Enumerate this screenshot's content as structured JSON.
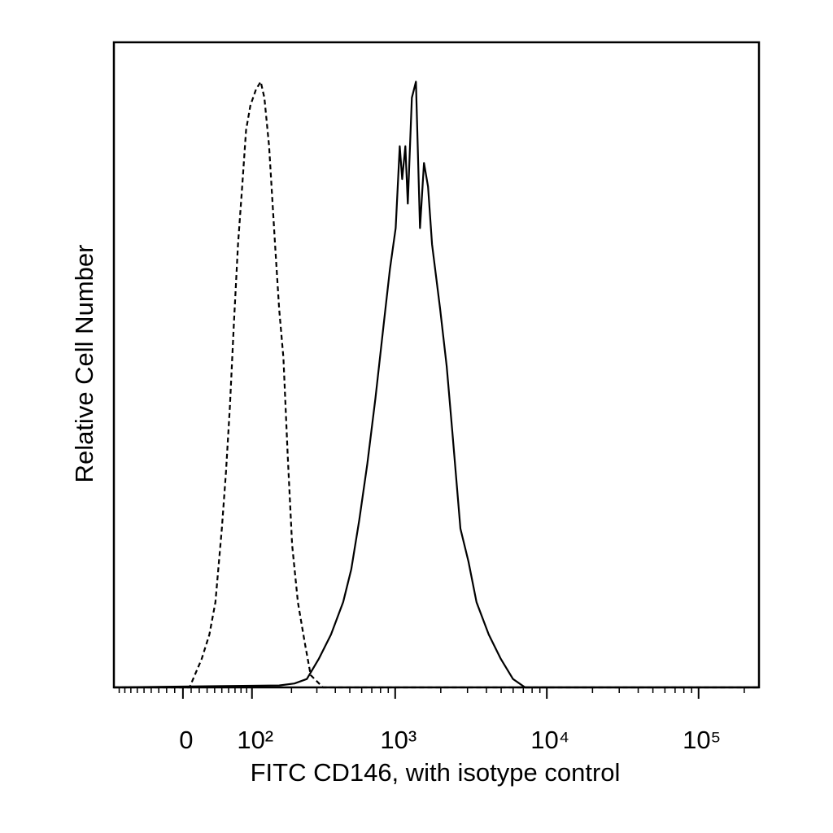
{
  "chart_data": {
    "type": "line",
    "xlabel": "FITC CD146, with isotype control",
    "ylabel": "Relative Cell Number",
    "xscale": "biexponential",
    "xlim": [
      -100,
      250000
    ],
    "ylim": [
      0,
      100
    ],
    "xticks": [
      0,
      {
        "value": 100,
        "label": "10²"
      },
      {
        "value": 1000,
        "label": "10³"
      },
      {
        "value": 10000,
        "label": "10⁴"
      },
      {
        "value": 100000,
        "label": "10⁵"
      }
    ],
    "xminorticks": [
      -90,
      -80,
      -70,
      -60,
      -50,
      -40,
      -30,
      -20,
      -10,
      10,
      20,
      30,
      40,
      50,
      60,
      70,
      80,
      90,
      200,
      300,
      400,
      500,
      600,
      700,
      800,
      900,
      2000,
      3000,
      4000,
      5000,
      6000,
      7000,
      8000,
      9000,
      20000,
      30000,
      40000,
      50000,
      60000,
      70000,
      80000,
      90000,
      200000
    ],
    "series": [
      {
        "color": "#000000",
        "line_style": "dashed",
        "x": [
          -100,
          8,
          23,
          33,
          41,
          50,
          56,
          62,
          68,
          75,
          82,
          89,
          97,
          108,
          118,
          126,
          137,
          152,
          163,
          175,
          188,
          202,
          222,
          248,
          272,
          330,
          250000
        ],
        "values": [
          0,
          0,
          4.4,
          8.2,
          13.2,
          24.6,
          33.4,
          43.5,
          56.1,
          68.7,
          77.6,
          86.4,
          90.2,
          92.7,
          93.9,
          91.4,
          83.9,
          68.7,
          58.6,
          51.1,
          35.9,
          22.1,
          13.2,
          6.9,
          1.9,
          0,
          0
        ]
      },
      {
        "color": "#000000",
        "line_style": "solid",
        "x": [
          -100,
          163,
          210,
          256,
          309,
          374,
          451,
          511,
          578,
          654,
          740,
          838,
          924,
          1007,
          1072,
          1112,
          1168,
          1212,
          1289,
          1371,
          1458,
          1550,
          1648,
          1752,
          1981,
          2186,
          2382,
          2694,
          3046,
          3443,
          4139,
          4976,
          5984,
          7192,
          250000
        ],
        "values": [
          0,
          0.3,
          0.6,
          1.3,
          4.4,
          8.2,
          13.2,
          18.3,
          25.9,
          34.7,
          44.8,
          56.1,
          64.9,
          71.2,
          83.9,
          78.8,
          83.9,
          75.0,
          91.4,
          93.9,
          71.2,
          81.3,
          77.6,
          68.7,
          58.6,
          49.8,
          39.7,
          24.6,
          19.5,
          13.2,
          8.2,
          4.4,
          1.3,
          0,
          0
        ]
      }
    ]
  }
}
